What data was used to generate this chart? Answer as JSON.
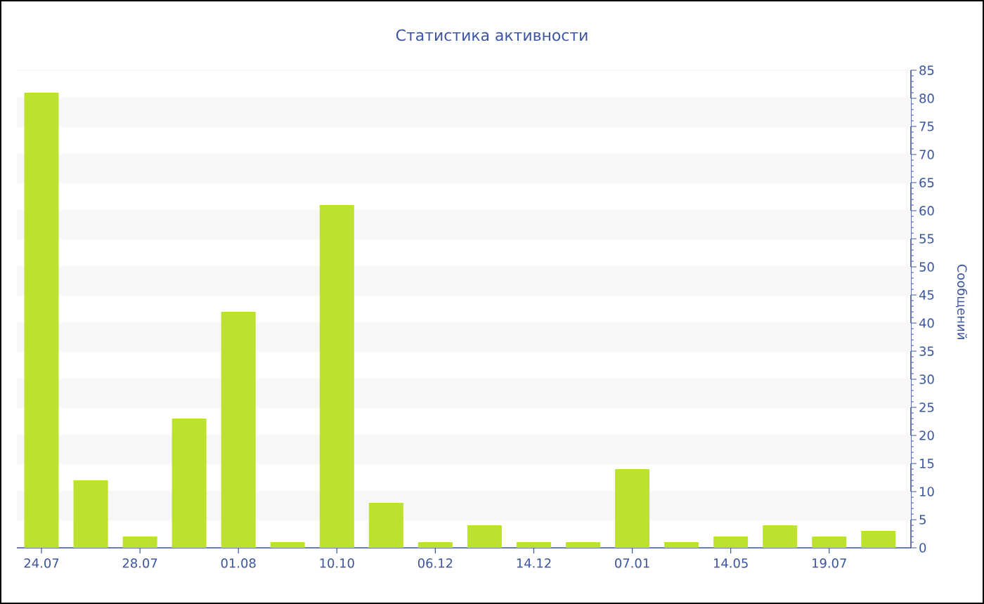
{
  "chart_data": {
    "type": "bar",
    "title": "Статистика активности",
    "ylabel": "Сообщений",
    "categories": [
      "24.07",
      null,
      "28.07",
      null,
      "01.08",
      null,
      "10.10",
      null,
      "06.12",
      null,
      "14.12",
      null,
      "07.01",
      null,
      "14.05",
      null,
      "19.07",
      null
    ],
    "values": [
      81,
      12,
      2,
      23,
      42,
      1,
      61,
      8,
      1,
      4,
      1,
      1,
      14,
      1,
      2,
      4,
      2,
      3
    ],
    "color": "#bce12f",
    "ylim": [
      0,
      85
    ],
    "yticks": [
      0,
      5,
      10,
      15,
      20,
      25,
      30,
      35,
      40,
      45,
      50,
      55,
      60,
      65,
      70,
      75,
      80,
      85
    ],
    "grid": "y"
  }
}
